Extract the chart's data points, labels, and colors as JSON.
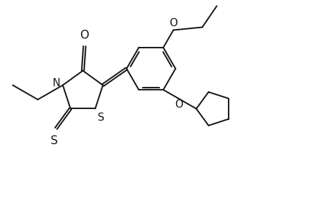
{
  "bg_color": "#ffffff",
  "line_color": "#1a1a1a",
  "line_width": 1.5,
  "figsize": [
    4.6,
    3.0
  ],
  "dpi": 100,
  "xlim": [
    0,
    9.2
  ],
  "ylim": [
    0,
    6.0
  ]
}
